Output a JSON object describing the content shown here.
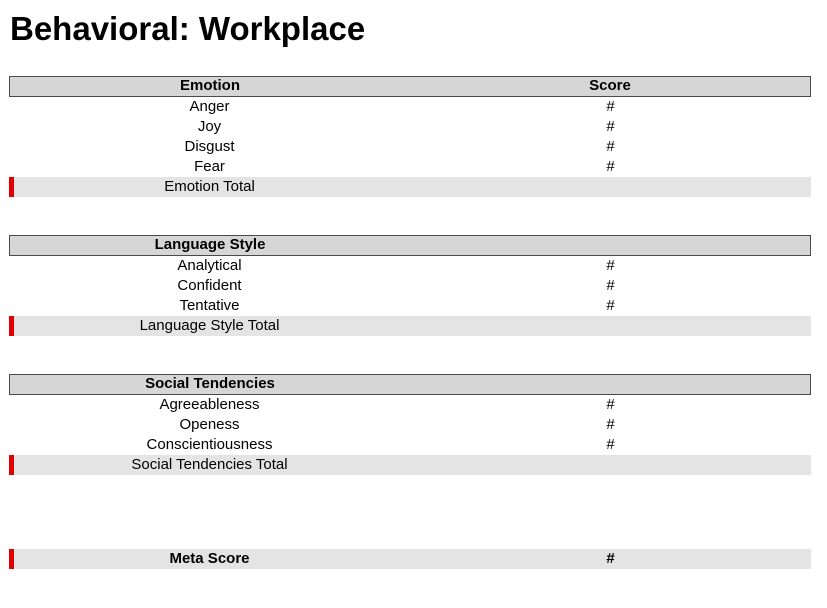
{
  "page": {
    "title": "Behavioral: Workplace"
  },
  "sections": [
    {
      "header": "Emotion",
      "score_header": "Score",
      "rows": [
        {
          "label": "Anger",
          "score": "#"
        },
        {
          "label": "Joy",
          "score": "#"
        },
        {
          "label": "Disgust",
          "score": "#"
        },
        {
          "label": "Fear",
          "score": "#"
        }
      ],
      "total_label": "Emotion Total",
      "total_score": ""
    },
    {
      "header": "Language Style",
      "score_header": "",
      "rows": [
        {
          "label": "Analytical",
          "score": "#"
        },
        {
          "label": "Confident",
          "score": "#"
        },
        {
          "label": "Tentative",
          "score": "#"
        }
      ],
      "total_label": "Language Style Total",
      "total_score": ""
    },
    {
      "header": "Social Tendencies",
      "score_header": "",
      "rows": [
        {
          "label": "Agreeableness",
          "score": "#"
        },
        {
          "label": "Openess",
          "score": "#"
        },
        {
          "label": "Conscientiousness",
          "score": "#"
        }
      ],
      "total_label": "Social Tendencies Total",
      "total_score": ""
    }
  ],
  "meta": {
    "label": "Meta Score",
    "score": "#"
  },
  "colors": {
    "header_bg": "#d6d6d6",
    "total_bg": "#e4e4e4",
    "marker_red": "#e00000",
    "header_border": "#4a4a4a",
    "text": "#000000"
  }
}
